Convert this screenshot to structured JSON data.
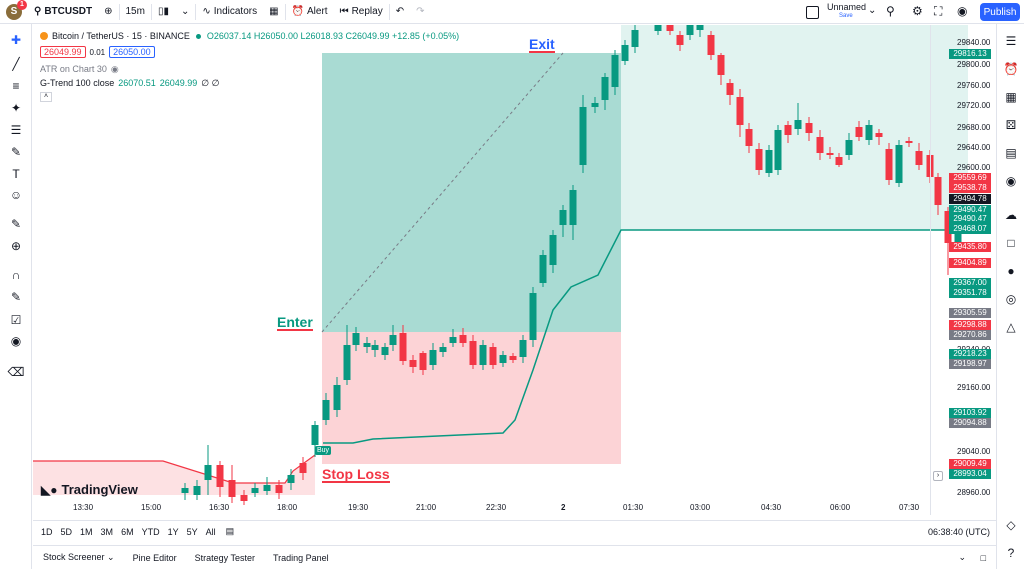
{
  "topbar": {
    "avatar": "S",
    "avatar_badge": "1",
    "symbol": "BTCUSDT",
    "interval": "15m",
    "indicators_label": "Indicators",
    "alert_label": "Alert",
    "replay_label": "Replay",
    "layout_name": "Unnamed",
    "layout_status": "Save",
    "publish_label": "Publish"
  },
  "legend": {
    "title": "Bitcoin / TetherUS · 15 · BINANCE",
    "ohlc": "O26037.14 H26050.00 L26018.93 C26049.99 +12.85 (+0.05%)",
    "sell_price": "26049.99",
    "spread": "0.01",
    "buy_price": "26050.00",
    "ind1": "ATR on Chart 30",
    "ind2_name": "G-Trend 100 close",
    "ind2_v1": "26070.51",
    "ind2_v2": "26049.99",
    "ind2_v3": "∅ ∅"
  },
  "annotations": {
    "enter": "Enter",
    "exit": "Exit",
    "stop_loss": "Stop Loss",
    "buy_tag": "Buy",
    "watermark": "TradingView"
  },
  "price_axis": {
    "ticks": [
      "29840.00",
      "29800.00",
      "29760.00",
      "29720.00",
      "29680.00",
      "29640.00",
      "29600.00",
      "29320.00",
      "29240.00",
      "29160.00",
      "29120.00",
      "29040.00",
      "28960.00"
    ],
    "labels": [
      {
        "text": "29816.13",
        "color": "#089981"
      },
      {
        "text": "29559.69",
        "color": "#f23645"
      },
      {
        "text": "29538.78",
        "color": "#f23645"
      },
      {
        "text": "29494.78",
        "color": "#131722"
      },
      {
        "text": "29490.47",
        "color": "#089981"
      },
      {
        "text": "29490.47",
        "color": "#089981"
      },
      {
        "text": "29468.07",
        "color": "#089981"
      },
      {
        "text": "29435.80",
        "color": "#f23645"
      },
      {
        "text": "29404.89",
        "color": "#f23645"
      },
      {
        "text": "29367.00",
        "color": "#089981"
      },
      {
        "text": "29351.78",
        "color": "#089981"
      },
      {
        "text": "29305.59",
        "color": "#787b86"
      },
      {
        "text": "29298.88",
        "color": "#f23645"
      },
      {
        "text": "29270.86",
        "color": "#787b86"
      },
      {
        "text": "29218.23",
        "color": "#089981"
      },
      {
        "text": "29198.97",
        "color": "#787b86"
      },
      {
        "text": "29103.92",
        "color": "#089981"
      },
      {
        "text": "29094.88",
        "color": "#787b86"
      },
      {
        "text": "29009.49",
        "color": "#f23645"
      },
      {
        "text": "28993.04",
        "color": "#089981"
      }
    ]
  },
  "time_axis": {
    "ticks": [
      "13:30",
      "15:00",
      "16:30",
      "18:00",
      "19:30",
      "21:00",
      "22:30",
      "2",
      "01:30",
      "03:00",
      "04:30",
      "06:00",
      "07:30"
    ],
    "clock": "06:38:40 (UTC)"
  },
  "range_buttons": [
    "1D",
    "5D",
    "1M",
    "3M",
    "6M",
    "YTD",
    "1Y",
    "5Y",
    "All"
  ],
  "bottom_tabs": [
    "Stock Screener",
    "Pine Editor",
    "Strategy Tester",
    "Trading Panel"
  ],
  "colors": {
    "up": "#089981",
    "down": "#f23645",
    "accent": "#2962ff"
  }
}
